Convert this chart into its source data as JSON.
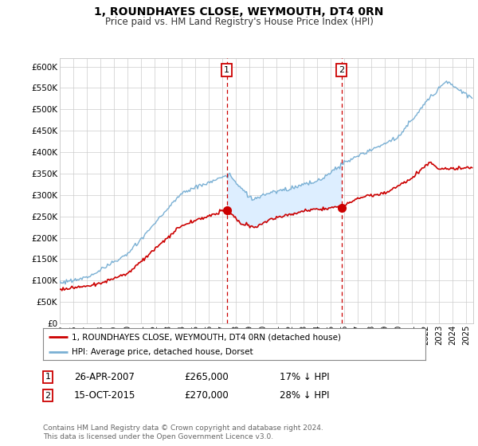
{
  "title": "1, ROUNDHAYES CLOSE, WEYMOUTH, DT4 0RN",
  "subtitle": "Price paid vs. HM Land Registry's House Price Index (HPI)",
  "ylabel_ticks": [
    0,
    50000,
    100000,
    150000,
    200000,
    250000,
    300000,
    350000,
    400000,
    450000,
    500000,
    550000,
    600000
  ],
  "ylabel_labels": [
    "£0",
    "£50K",
    "£100K",
    "£150K",
    "£200K",
    "£250K",
    "£300K",
    "£350K",
    "£400K",
    "£450K",
    "£500K",
    "£550K",
    "£600K"
  ],
  "ylim": [
    0,
    620000
  ],
  "xlim_start": 1995,
  "xlim_end": 2025.5,
  "sale1_x": 2007.32,
  "sale1_y": 265000,
  "sale1_label": "1",
  "sale2_x": 2015.79,
  "sale2_y": 270000,
  "sale2_label": "2",
  "property_color": "#cc0000",
  "hpi_color": "#7ab0d4",
  "shade_color": "#ddeeff",
  "legend_property": "1, ROUNDHAYES CLOSE, WEYMOUTH, DT4 0RN (detached house)",
  "legend_hpi": "HPI: Average price, detached house, Dorset",
  "background_color": "#ffffff",
  "grid_color": "#cccccc",
  "title_fontsize": 10,
  "subtitle_fontsize": 8.5
}
